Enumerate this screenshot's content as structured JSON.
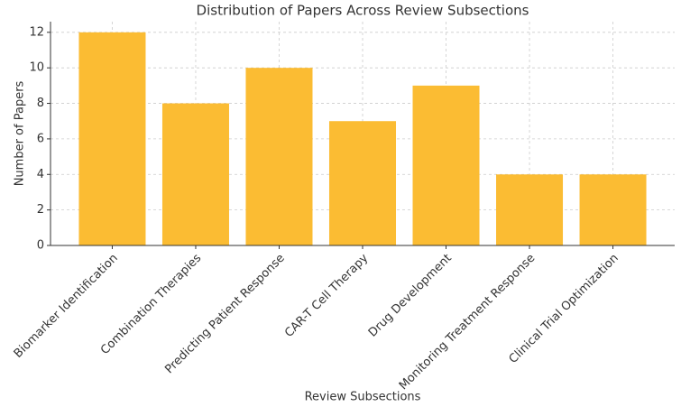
{
  "chart_data": {
    "type": "bar",
    "title": "Distribution of Papers Across Review Subsections",
    "x_label": "Review Subsections",
    "y_label": "Number of Papers",
    "categories": [
      "Biomarker Identification",
      "Combination Therapies",
      "Predicting Patient Response",
      "CAR-T Cell Therapy",
      "Drug Development",
      "Monitoring Treatment Response",
      "Clinical Trial Optimization"
    ],
    "values": [
      12,
      8,
      10,
      7,
      9,
      4,
      4
    ],
    "color": "#fbbc33",
    "ylim": [
      0,
      12.6
    ],
    "yticks": [
      0,
      2,
      4,
      6,
      8,
      10,
      12
    ],
    "grid": true
  }
}
